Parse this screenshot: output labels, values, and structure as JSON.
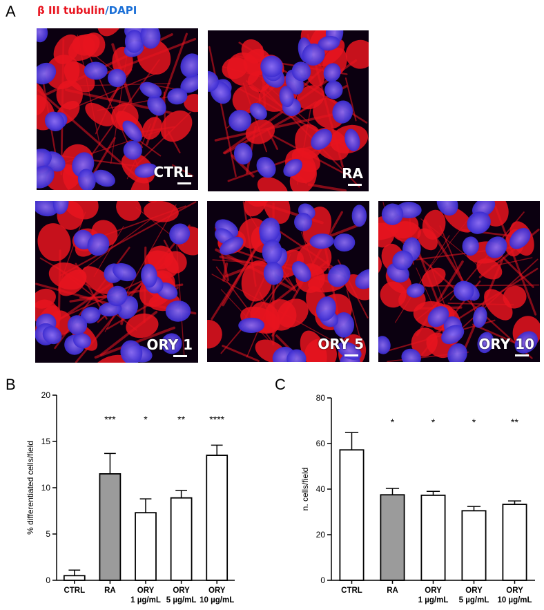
{
  "figure": {
    "panel_a": "A",
    "panel_b": "B",
    "panel_c": "C",
    "legend": {
      "marker": "β III tubulin",
      "separator": "/",
      "nuclear": "DAPI"
    },
    "colors": {
      "marker": "#e8141f",
      "nuclear": "#1a6fd6",
      "gray_bar": "#9b9b9b",
      "white_bar": "#ffffff"
    },
    "images": [
      {
        "label": "CTRL"
      },
      {
        "label": "RA"
      },
      {
        "label": "ORY 1"
      },
      {
        "label": "ORY 5"
      },
      {
        "label": "ORY 10"
      }
    ]
  },
  "chart_data": [
    {
      "type": "bar",
      "panel": "B",
      "ylabel": "% differentiated cells/field",
      "xlabel": "",
      "ylim": [
        0,
        20
      ],
      "yticks": [
        0,
        5,
        10,
        15,
        20
      ],
      "categories": [
        {
          "line1": "CTRL",
          "line2": ""
        },
        {
          "line1": "RA",
          "line2": ""
        },
        {
          "line1": "ORY",
          "line2": "1 µg/mL"
        },
        {
          "line1": "ORY",
          "line2": "5 µg/mL"
        },
        {
          "line1": "ORY",
          "line2": "10 µg/mL"
        }
      ],
      "values": [
        0.5,
        11.5,
        7.3,
        8.9,
        13.5
      ],
      "errors": [
        0.6,
        2.2,
        1.5,
        0.8,
        1.1
      ],
      "fills": [
        "white",
        "gray",
        "white",
        "white",
        "white"
      ],
      "significance": [
        "",
        "***",
        "*",
        "**",
        "****"
      ],
      "grid": false
    },
    {
      "type": "bar",
      "panel": "C",
      "ylabel": "n. cells/field",
      "xlabel": "",
      "ylim": [
        0,
        80
      ],
      "yticks": [
        0,
        20,
        40,
        60,
        80
      ],
      "categories": [
        {
          "line1": "CTRL",
          "line2": ""
        },
        {
          "line1": "RA",
          "line2": ""
        },
        {
          "line1": "ORY",
          "line2": "1 µg/mL"
        },
        {
          "line1": "ORY",
          "line2": "5 µg/mL"
        },
        {
          "line1": "ORY",
          "line2": "10 µg/mL"
        }
      ],
      "values": [
        57.2,
        37.5,
        37.3,
        30.5,
        33.3
      ],
      "errors": [
        7.6,
        2.8,
        1.7,
        1.9,
        1.5
      ],
      "fills": [
        "white",
        "gray",
        "white",
        "white",
        "white"
      ],
      "significance": [
        "",
        "*",
        "*",
        "*",
        "**"
      ],
      "grid": false
    }
  ]
}
